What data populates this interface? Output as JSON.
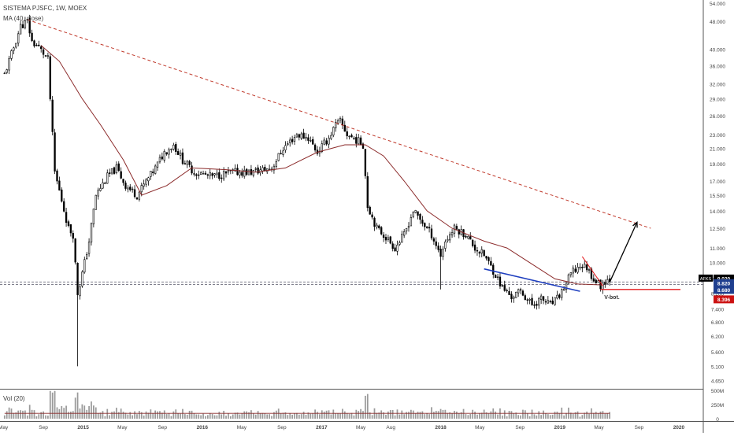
{
  "header": {
    "symbol_line": "SISTEMA PJSFC, 1W, MOEX",
    "ma_label": "MA (40, close)",
    "vol_label": "Vol (20)"
  },
  "colors": {
    "up": "#3a3a3a",
    "down": "#000000",
    "ma": "#8b2a2a",
    "trendline_dashed": "#c0392b",
    "blue_line": "#1f3fbf",
    "red_line": "#e41a1c",
    "arrow": "#000000",
    "price_badge": "#000000",
    "badge_blue": "#1f3f8f",
    "badge_red": "#cc1111"
  },
  "chart_data": {
    "type": "candlestick",
    "title": "SISTEMA PJSFC, 1W, MOEX",
    "scale": "log",
    "y_ticks": [
      "54.000",
      "48.000",
      "40.000",
      "36.000",
      "32.000",
      "29.000",
      "26.000",
      "23.000",
      "21.000",
      "19.000",
      "17.000",
      "15.500",
      "14.000",
      "12.500",
      "11.000",
      "10.000",
      "9.000",
      "8.200",
      "7.400",
      "6.800",
      "6.200",
      "5.600",
      "5.100",
      "4.650"
    ],
    "x_ticks": [
      "May",
      "Sep",
      "2015",
      "May",
      "Sep",
      "2016",
      "May",
      "Sep",
      "2017",
      "May",
      "Aug",
      "2018",
      "May",
      "Sep",
      "2019",
      "May",
      "Sep",
      "2020"
    ],
    "price_path_points": [
      [
        "2014-05-05",
        34.0
      ],
      [
        "2014-06-02",
        40.5
      ],
      [
        "2014-06-23",
        46.5
      ],
      [
        "2014-07-14",
        48.0
      ],
      [
        "2014-07-28",
        42.0
      ],
      [
        "2014-08-18",
        40.5
      ],
      [
        "2014-09-01",
        39.0
      ],
      [
        "2014-09-15",
        37.5
      ],
      [
        "2014-09-22",
        29.0
      ],
      [
        "2014-10-06",
        18.0
      ],
      [
        "2014-10-27",
        15.0
      ],
      [
        "2014-11-17",
        12.5
      ],
      [
        "2014-12-01",
        12.0
      ],
      [
        "2014-12-15",
        8.2
      ],
      [
        "2014-12-22",
        8.7
      ],
      [
        "2015-01-19",
        11.5
      ],
      [
        "2015-02-09",
        15.5
      ],
      [
        "2015-03-16",
        17.5
      ],
      [
        "2015-04-13",
        18.5
      ],
      [
        "2015-05-11",
        16.5
      ],
      [
        "2015-06-15",
        15.5
      ],
      [
        "2015-08-10",
        18.5
      ],
      [
        "2015-09-07",
        20.5
      ],
      [
        "2015-10-05",
        21.5
      ],
      [
        "2015-11-02",
        19.5
      ],
      [
        "2015-12-07",
        18.0
      ],
      [
        "2016-02-01",
        17.5
      ],
      [
        "2016-04-04",
        18.0
      ],
      [
        "2016-05-30",
        18.0
      ],
      [
        "2016-08-01",
        18.5
      ],
      [
        "2016-09-05",
        21.0
      ],
      [
        "2016-10-17",
        23.0
      ],
      [
        "2016-11-21",
        22.5
      ],
      [
        "2016-12-19",
        20.5
      ],
      [
        "2017-01-23",
        22.5
      ],
      [
        "2017-02-13",
        24.5
      ],
      [
        "2017-02-27",
        25.0
      ],
      [
        "2017-03-20",
        23.0
      ],
      [
        "2017-04-24",
        22.0
      ],
      [
        "2017-05-08",
        21.5
      ],
      [
        "2017-05-22",
        14.5
      ],
      [
        "2017-06-19",
        12.5
      ],
      [
        "2017-07-10",
        12.0
      ],
      [
        "2017-08-14",
        11.0
      ],
      [
        "2017-09-11",
        12.0
      ],
      [
        "2017-10-09",
        14.0
      ],
      [
        "2017-11-06",
        13.0
      ],
      [
        "2017-12-04",
        12.0
      ],
      [
        "2018-01-01",
        10.5
      ],
      [
        "2018-01-15",
        11.5
      ],
      [
        "2018-02-12",
        12.5
      ],
      [
        "2018-03-19",
        12.0
      ],
      [
        "2018-04-16",
        11.0
      ],
      [
        "2018-05-14",
        10.5
      ],
      [
        "2018-06-11",
        9.5
      ],
      [
        "2018-07-09",
        8.5
      ],
      [
        "2018-08-06",
        8.0
      ],
      [
        "2018-09-03",
        8.3
      ],
      [
        "2018-10-08",
        7.6
      ],
      [
        "2018-11-05",
        7.9
      ],
      [
        "2018-12-03",
        7.6
      ],
      [
        "2018-12-24",
        7.9
      ],
      [
        "2019-01-14",
        8.5
      ],
      [
        "2019-02-04",
        9.3
      ],
      [
        "2019-03-04",
        9.8
      ],
      [
        "2019-03-25",
        9.7
      ],
      [
        "2019-04-15",
        9.0
      ],
      [
        "2019-05-06",
        8.6
      ],
      [
        "2019-05-20",
        8.9
      ],
      [
        "2019-06-03",
        9.0
      ]
    ],
    "wick_extremes": [
      {
        "date": "2014-07-14",
        "high": 48.5
      },
      {
        "date": "2014-12-15",
        "low": 5.1
      },
      {
        "date": "2017-02-20",
        "high": 25.5
      },
      {
        "date": "2018-01-01",
        "low": 8.4
      }
    ],
    "ma_path_points": [
      [
        "2014-08-25",
        41.0
      ],
      [
        "2014-10-20",
        37.0
      ],
      [
        "2014-12-29",
        29.0
      ],
      [
        "2015-02-23",
        24.5
      ],
      [
        "2015-05-04",
        19.5
      ],
      [
        "2015-06-29",
        15.5
      ],
      [
        "2015-09-14",
        16.5
      ],
      [
        "2015-11-30",
        18.5
      ],
      [
        "2016-03-14",
        18.3
      ],
      [
        "2016-06-13",
        18.0
      ],
      [
        "2016-09-12",
        18.5
      ],
      [
        "2016-12-19",
        20.5
      ],
      [
        "2017-03-13",
        21.5
      ],
      [
        "2017-05-15",
        21.5
      ],
      [
        "2017-07-10",
        20.0
      ],
      [
        "2017-09-11",
        17.0
      ],
      [
        "2017-11-20",
        14.0
      ],
      [
        "2018-02-05",
        12.5
      ],
      [
        "2018-05-14",
        11.5
      ],
      [
        "2018-07-23",
        11.0
      ],
      [
        "2018-10-01",
        10.0
      ],
      [
        "2018-12-17",
        9.0
      ],
      [
        "2019-02-25",
        8.7
      ],
      [
        "2019-05-13",
        8.65
      ]
    ],
    "annotations": {
      "descending_trendline": [
        [
          "2014-07-14",
          48.5
        ],
        [
          "2019-10-07",
          12.5
        ]
      ],
      "blue_trendline": [
        [
          "2018-05-14",
          9.6
        ],
        [
          "2019-03-04",
          8.3
        ]
      ],
      "red_support_line": [
        [
          "2019-05-06",
          8.4
        ],
        [
          "2020-01-06",
          8.4
        ]
      ],
      "projection_arrow": [
        [
          "2019-06-03",
          8.8
        ],
        [
          "2019-08-26",
          13.0
        ]
      ],
      "small_red_trendline": [
        [
          "2019-03-11",
          10.4
        ],
        [
          "2019-05-13",
          8.6
        ]
      ],
      "v_bottom_text": "V-bot."
    },
    "price_labels": [
      {
        "text": "AFKS",
        "value": 9.02
      },
      {
        "text": "9.020",
        "value": 9.02
      },
      {
        "text": "8.820",
        "value": 8.82
      },
      {
        "text": "8.680",
        "value": 8.68
      },
      {
        "text": "8.396",
        "value": 8.396
      }
    ],
    "horizontal_levels": [
      8.82,
      8.68
    ],
    "volume": {
      "label": "Vol (20)",
      "ticks": [
        "500M",
        "250M",
        "0"
      ]
    }
  }
}
